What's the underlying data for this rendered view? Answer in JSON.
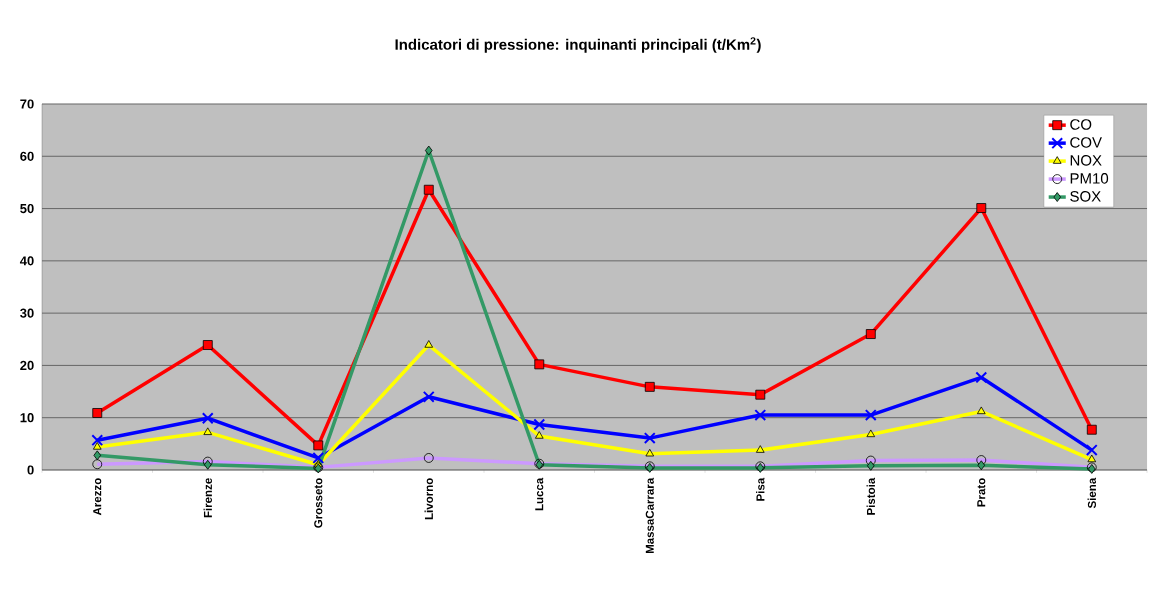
{
  "chart_data": {
    "type": "line",
    "title": "Indicatori di pressione: inquinanti principali (t/Km$^{2}$)",
    "categories": [
      "Arezzo",
      "Firenze",
      "Grosseto",
      "Livorno",
      "Lucca",
      "MassaCarrara",
      "Pisa",
      "Pistoia",
      "Prato",
      "Siena"
    ],
    "series": [
      {
        "name": "CO",
        "color": "#ff0000",
        "marker": "square",
        "values": [
          10.9,
          23.9,
          4.7,
          53.6,
          20.2,
          15.9,
          14.4,
          26,
          50.1,
          7.7
        ]
      },
      {
        "name": "COV",
        "color": "#0000ff",
        "marker": "cross",
        "values": [
          5.7,
          9.9,
          2.3,
          14,
          8.7,
          6.1,
          10.5,
          10.5,
          17.7,
          3.8
        ]
      },
      {
        "name": "NOX",
        "color": "#ffff00",
        "marker": "triangle",
        "values": [
          4.4,
          7.2,
          1.0,
          23.9,
          6.5,
          3.1,
          3.8,
          6.8,
          11.2,
          2.0
        ]
      },
      {
        "name": "PM10",
        "color": "#cc99ff",
        "marker": "circle",
        "values": [
          1.1,
          1.6,
          0.5,
          2.3,
          1.2,
          0.7,
          0.7,
          1.8,
          1.9,
          0.5
        ]
      },
      {
        "name": "SOX",
        "color": "#339966",
        "marker": "diamond",
        "values": [
          2.8,
          1.0,
          0.3,
          61.1,
          1.0,
          0.4,
          0.4,
          0.8,
          0.9,
          0.2
        ]
      }
    ],
    "ylim": [
      0,
      70
    ],
    "yticks": [
      0,
      10,
      20,
      30,
      40,
      50,
      60,
      70
    ],
    "grid": "y",
    "legend": "top right"
  }
}
